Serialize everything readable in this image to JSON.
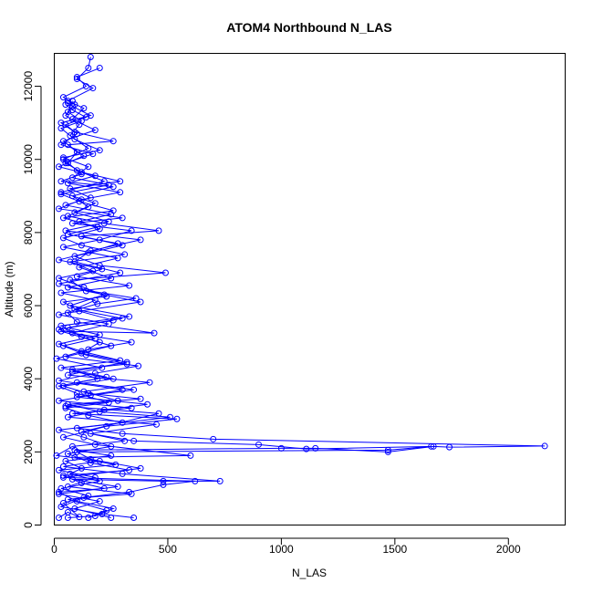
{
  "chart_data": {
    "type": "line",
    "title": "ATOM4 Northbound N_LAS",
    "xlabel": "N_LAS",
    "ylabel": "Altitude (m)",
    "xlim": [
      0,
      2250
    ],
    "ylim": [
      0,
      12900
    ],
    "x_ticks": [
      0,
      500,
      1000,
      1500,
      2000
    ],
    "y_ticks": [
      0,
      2000,
      4000,
      6000,
      8000,
      10000,
      12000
    ],
    "x_tick_labels": [
      "0",
      "500",
      "1000",
      "1500",
      "2000"
    ],
    "y_tick_labels": [
      "0",
      "2000",
      "4000",
      "6000",
      "8000",
      "10000",
      "12000"
    ],
    "grid": false,
    "markers": "open-circle",
    "colors": {
      "series": "#0000ff",
      "axes": "#000000",
      "background": "#ffffff"
    },
    "series": [
      {
        "values": [
          [
            20,
            200
          ],
          [
            60,
            350
          ],
          [
            110,
            220
          ],
          [
            40,
            600
          ],
          [
            150,
            800
          ],
          [
            30,
            1000
          ],
          [
            200,
            1200
          ],
          [
            70,
            1400
          ],
          [
            120,
            1550
          ],
          [
            50,
            1750
          ],
          [
            250,
            1900
          ],
          [
            90,
            2050
          ],
          [
            1000,
            2100
          ],
          [
            1150,
            2100
          ],
          [
            1470,
            2000
          ],
          [
            1670,
            2150
          ],
          [
            1740,
            2130
          ],
          [
            2160,
            2160
          ],
          [
            700,
            2350
          ],
          [
            300,
            2500
          ],
          [
            100,
            2650
          ],
          [
            510,
            2950
          ],
          [
            200,
            3100
          ],
          [
            60,
            3300
          ],
          [
            380,
            3450
          ],
          [
            150,
            3600
          ],
          [
            40,
            3800
          ],
          [
            260,
            4000
          ],
          [
            80,
            4200
          ],
          [
            320,
            4450
          ],
          [
            120,
            4700
          ],
          [
            200,
            5000
          ],
          [
            30,
            5300
          ],
          [
            440,
            5250
          ],
          [
            100,
            5550
          ],
          [
            60,
            5800
          ],
          [
            380,
            6100
          ],
          [
            140,
            6400
          ],
          [
            70,
            6700
          ],
          [
            490,
            6900
          ],
          [
            200,
            7100
          ],
          [
            90,
            7350
          ],
          [
            300,
            7650
          ],
          [
            120,
            7900
          ],
          [
            460,
            8050
          ],
          [
            220,
            8250
          ],
          [
            60,
            8450
          ],
          [
            150,
            8700
          ],
          [
            80,
            9000
          ],
          [
            260,
            9250
          ],
          [
            30,
            9400
          ],
          [
            120,
            9600
          ],
          [
            60,
            9900
          ],
          [
            100,
            10200
          ],
          [
            40,
            10500
          ],
          [
            180,
            10800
          ],
          [
            80,
            11100
          ],
          [
            130,
            11400
          ],
          [
            60,
            11600
          ],
          [
            170,
            11950
          ],
          [
            100,
            12200
          ],
          [
            150,
            12500
          ],
          [
            160,
            12800
          ]
        ]
      },
      {
        "values": [
          [
            150,
            200
          ],
          [
            230,
            400
          ],
          [
            60,
            700
          ],
          [
            330,
            900
          ],
          [
            480,
            1100
          ],
          [
            620,
            1200
          ],
          [
            40,
            1300
          ],
          [
            380,
            1550
          ],
          [
            160,
            1800
          ],
          [
            100,
            2000
          ],
          [
            1470,
            2050
          ],
          [
            1660,
            2150
          ],
          [
            1110,
            2080
          ],
          [
            900,
            2200
          ],
          [
            350,
            2300
          ],
          [
            160,
            2500
          ],
          [
            450,
            2750
          ],
          [
            60,
            2950
          ],
          [
            220,
            3150
          ],
          [
            410,
            3300
          ],
          [
            100,
            3500
          ],
          [
            300,
            3700
          ],
          [
            20,
            3950
          ],
          [
            180,
            4150
          ],
          [
            370,
            4350
          ],
          [
            50,
            4600
          ],
          [
            250,
            4900
          ],
          [
            120,
            5150
          ],
          [
            30,
            5450
          ],
          [
            330,
            5700
          ],
          [
            70,
            6000
          ],
          [
            220,
            6300
          ],
          [
            20,
            6600
          ],
          [
            290,
            6900
          ],
          [
            90,
            7200
          ],
          [
            160,
            7500
          ],
          [
            380,
            7800
          ],
          [
            50,
            8050
          ],
          [
            240,
            8300
          ],
          [
            90,
            8550
          ],
          [
            180,
            8800
          ],
          [
            30,
            9100
          ],
          [
            220,
            9400
          ],
          [
            100,
            9700
          ],
          [
            40,
            10000
          ],
          [
            150,
            10300
          ],
          [
            70,
            10650
          ],
          [
            110,
            10950
          ],
          [
            50,
            11200
          ],
          [
            90,
            11500
          ],
          [
            40,
            11700
          ],
          [
            140,
            12000
          ],
          [
            100,
            12250
          ],
          [
            200,
            12500
          ]
        ]
      },
      {
        "values": [
          [
            250,
            200
          ],
          [
            90,
            450
          ],
          [
            200,
            650
          ],
          [
            20,
            850
          ],
          [
            280,
            1050
          ],
          [
            80,
            1250
          ],
          [
            480,
            1200
          ],
          [
            730,
            1200
          ],
          [
            300,
            1400
          ],
          [
            40,
            1600
          ],
          [
            200,
            1750
          ],
          [
            10,
            1900
          ],
          [
            80,
            2150
          ],
          [
            310,
            2300
          ],
          [
            120,
            2550
          ],
          [
            460,
            3050
          ],
          [
            50,
            3250
          ],
          [
            280,
            3400
          ],
          [
            130,
            3650
          ],
          [
            420,
            3900
          ],
          [
            60,
            4100
          ],
          [
            210,
            4300
          ],
          [
            10,
            4550
          ],
          [
            150,
            4800
          ],
          [
            340,
            5000
          ],
          [
            80,
            5250
          ],
          [
            240,
            5500
          ],
          [
            20,
            5750
          ],
          [
            190,
            6050
          ],
          [
            360,
            6200
          ],
          [
            60,
            6500
          ],
          [
            250,
            6750
          ],
          [
            110,
            7050
          ],
          [
            280,
            7300
          ],
          [
            40,
            7600
          ],
          [
            200,
            7800
          ],
          [
            340,
            8050
          ],
          [
            80,
            8250
          ],
          [
            300,
            8400
          ],
          [
            20,
            8650
          ],
          [
            120,
            8900
          ],
          [
            290,
            9100
          ],
          [
            60,
            9350
          ],
          [
            180,
            9550
          ],
          [
            20,
            9800
          ],
          [
            130,
            10100
          ],
          [
            60,
            10400
          ],
          [
            260,
            10500
          ],
          [
            90,
            10750
          ],
          [
            30,
            11000
          ],
          [
            160,
            11200
          ],
          [
            80,
            11450
          ],
          [
            60,
            11550
          ]
        ]
      },
      {
        "values": [
          [
            350,
            200
          ],
          [
            210,
            300
          ],
          [
            30,
            500
          ],
          [
            130,
            750
          ],
          [
            340,
            850
          ],
          [
            60,
            1050
          ],
          [
            180,
            1300
          ],
          [
            20,
            1500
          ],
          [
            270,
            1650
          ],
          [
            90,
            1850
          ],
          [
            600,
            1900
          ],
          [
            180,
            2200
          ],
          [
            40,
            2400
          ],
          [
            230,
            2700
          ],
          [
            540,
            2900
          ],
          [
            80,
            3050
          ],
          [
            340,
            3200
          ],
          [
            20,
            3400
          ],
          [
            160,
            3550
          ],
          [
            350,
            3700
          ],
          [
            100,
            3900
          ],
          [
            230,
            4050
          ],
          [
            30,
            4300
          ],
          [
            290,
            4500
          ],
          [
            120,
            4750
          ],
          [
            20,
            4950
          ],
          [
            200,
            5200
          ],
          [
            60,
            5400
          ],
          [
            300,
            5650
          ],
          [
            90,
            5900
          ],
          [
            180,
            6150
          ],
          [
            30,
            6350
          ],
          [
            330,
            6550
          ],
          [
            100,
            6800
          ],
          [
            210,
            7000
          ],
          [
            20,
            7250
          ],
          [
            150,
            7450
          ],
          [
            280,
            7700
          ],
          [
            60,
            7950
          ],
          [
            190,
            8150
          ],
          [
            40,
            8400
          ],
          [
            260,
            8600
          ],
          [
            110,
            8850
          ],
          [
            30,
            9050
          ],
          [
            240,
            9300
          ],
          [
            80,
            9500
          ],
          [
            150,
            9800
          ],
          [
            40,
            10050
          ],
          [
            200,
            10250
          ],
          [
            90,
            10550
          ],
          [
            30,
            10850
          ],
          [
            120,
            11050
          ],
          [
            60,
            11300
          ],
          [
            80,
            11600
          ]
        ]
      },
      {
        "values": [
          [
            60,
            200
          ],
          [
            180,
            250
          ],
          [
            260,
            450
          ],
          [
            100,
            650
          ],
          [
            20,
            900
          ],
          [
            220,
            1000
          ],
          [
            120,
            1150
          ],
          [
            40,
            1350
          ],
          [
            330,
            1500
          ],
          [
            160,
            1700
          ],
          [
            60,
            1950
          ],
          [
            250,
            2150
          ],
          [
            130,
            2400
          ],
          [
            20,
            2600
          ],
          [
            300,
            2800
          ],
          [
            150,
            3000
          ],
          [
            50,
            3200
          ],
          [
            240,
            3350
          ],
          [
            100,
            3600
          ],
          [
            20,
            3800
          ],
          [
            190,
            4000
          ],
          [
            80,
            4250
          ],
          [
            320,
            4400
          ],
          [
            140,
            4650
          ],
          [
            40,
            4900
          ],
          [
            180,
            5100
          ],
          [
            20,
            5350
          ],
          [
            260,
            5600
          ],
          [
            110,
            5850
          ],
          [
            40,
            6100
          ],
          [
            230,
            6250
          ],
          [
            130,
            6500
          ],
          [
            20,
            6750
          ],
          [
            170,
            6950
          ],
          [
            70,
            7200
          ],
          [
            310,
            7400
          ],
          [
            120,
            7650
          ],
          [
            40,
            7850
          ],
          [
            200,
            8100
          ],
          [
            110,
            8300
          ],
          [
            250,
            8500
          ],
          [
            50,
            8750
          ],
          [
            160,
            8950
          ],
          [
            70,
            9200
          ],
          [
            290,
            9400
          ],
          [
            120,
            9650
          ],
          [
            50,
            9900
          ],
          [
            170,
            10150
          ],
          [
            30,
            10400
          ],
          [
            100,
            10700
          ],
          [
            50,
            10950
          ],
          [
            140,
            11150
          ],
          [
            80,
            11350
          ],
          [
            50,
            11500
          ]
        ]
      }
    ]
  }
}
